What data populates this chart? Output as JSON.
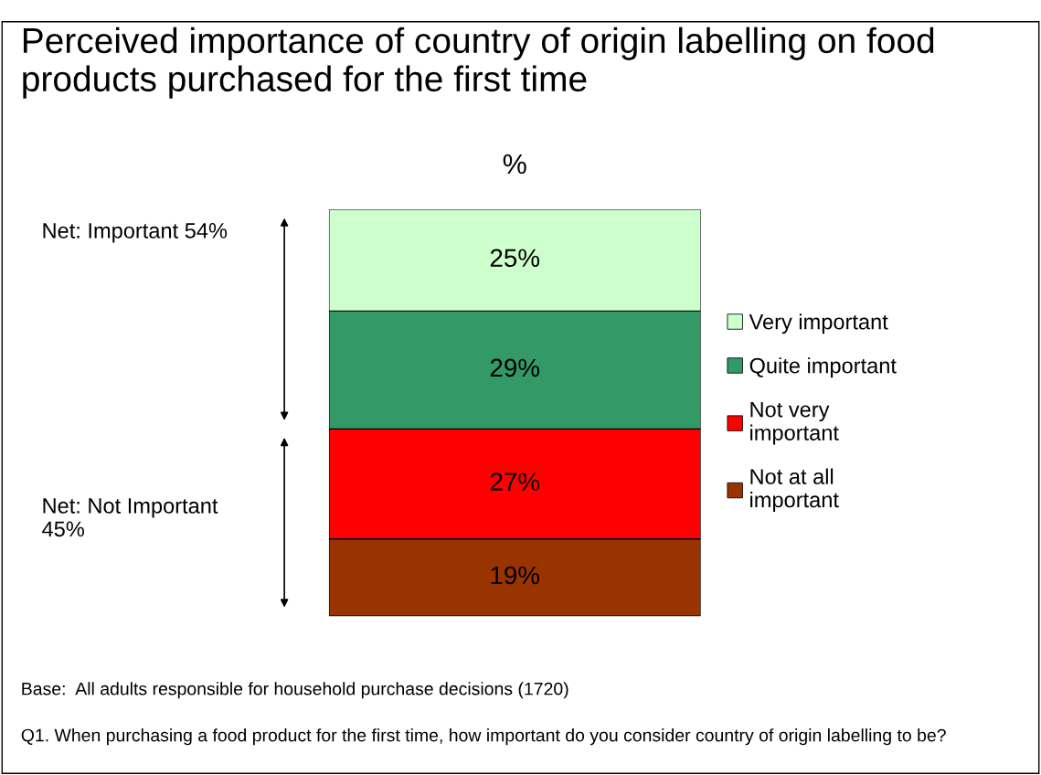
{
  "chart_data": {
    "type": "bar",
    "title": "Perceived importance of country of origin labelling on food products purchased for the first time",
    "subtitle": "%",
    "categories": [
      null
    ],
    "stacked": true,
    "legend": "right",
    "series": [
      {
        "name": "Not at all\nimportant",
        "color": "#993300",
        "values": [
          19
        ],
        "value_labels": [
          "19%"
        ]
      },
      {
        "name": "Not very\nimportant",
        "color": "#ff0000",
        "values": [
          27
        ],
        "value_labels": [
          "27%"
        ]
      },
      {
        "name": "Quite important",
        "color": "#339966",
        "values": [
          29
        ],
        "value_labels": [
          "29%"
        ]
      },
      {
        "name": "Very important",
        "color": "#ccffcc",
        "values": [
          25
        ],
        "value_labels": [
          "25%"
        ]
      }
    ],
    "annotations": [
      "Net: Important 54%",
      "Net: Not Important\n45%",
      "Base:  All adults responsible for household purchase decisions (1720)",
      "Q1. When purchasing a food product for the first time, how important do you consider country of origin labelling to be?"
    ]
  }
}
